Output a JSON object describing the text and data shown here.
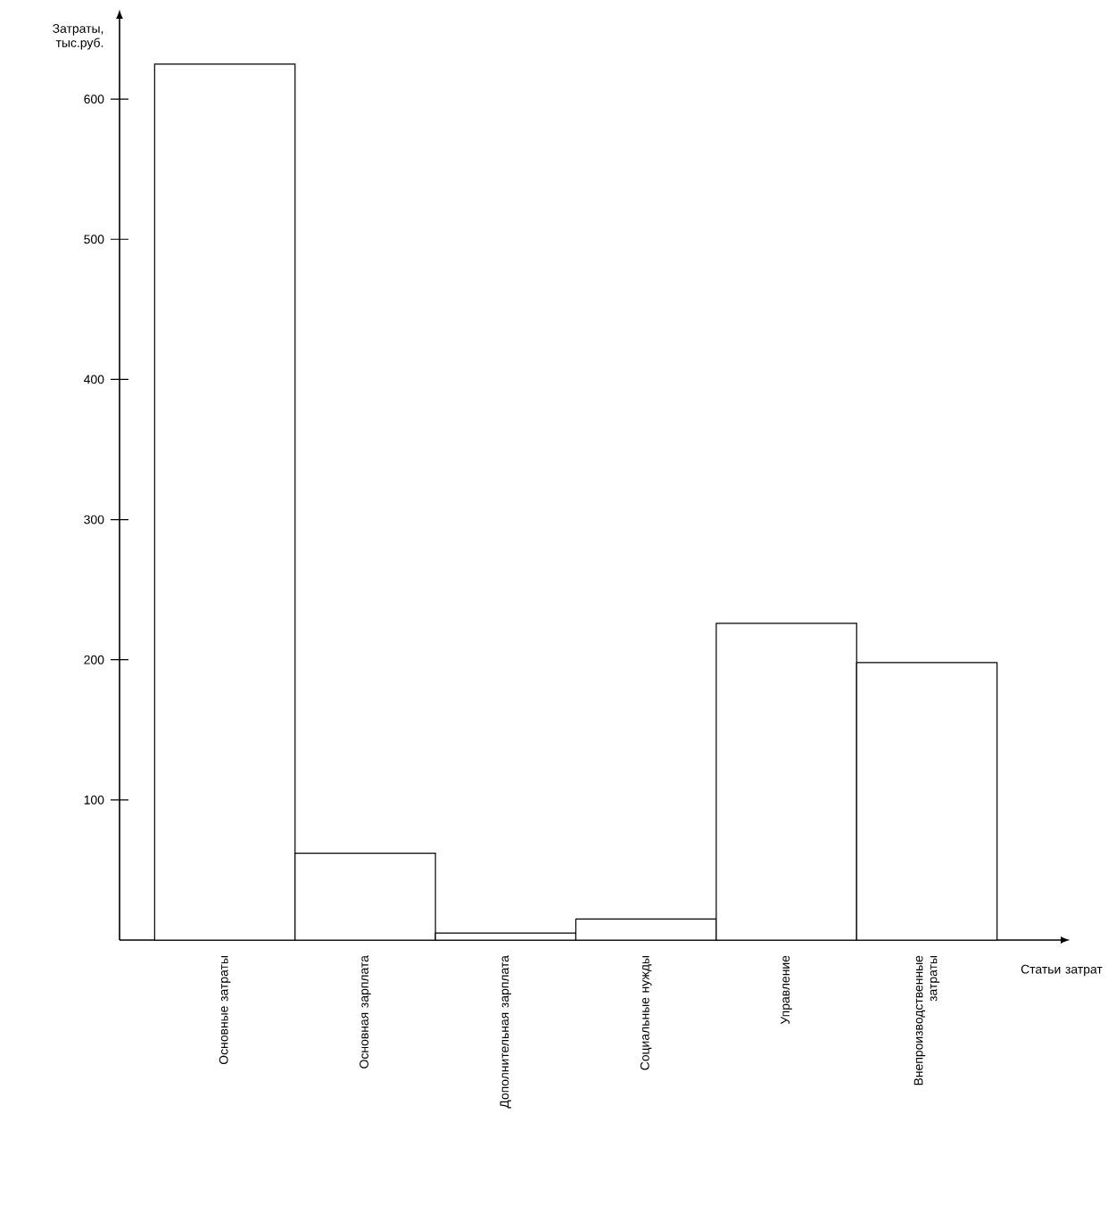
{
  "chart_data": {
    "type": "bar",
    "xlabel": "Статьи затрат",
    "ylabel": "Затраты, тыс.руб.",
    "categories": [
      "Основные затраты",
      "Основная зарплата",
      "Дополнительная зарплата",
      "Социальные нужды",
      "Управление",
      "Внепроизводственные затраты"
    ],
    "values": [
      625,
      62,
      5,
      15,
      226,
      198
    ],
    "color": "#ffffff",
    "ylim": [
      0,
      658
    ],
    "yticks": [
      100,
      200,
      300,
      400,
      500,
      600
    ]
  }
}
